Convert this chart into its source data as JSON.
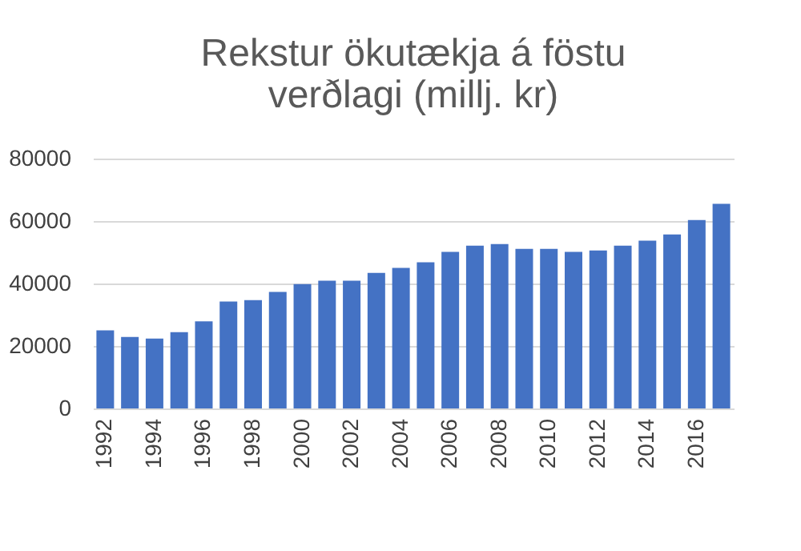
{
  "chart_data": {
    "type": "bar",
    "title": [
      "Rekstur ökutækja á föstu",
      "verðlagi (millj. kr)"
    ],
    "categories": [
      "1992",
      null,
      "1994",
      null,
      "1996",
      null,
      "1998",
      null,
      "2000",
      null,
      "2002",
      null,
      "2004",
      null,
      "2006",
      null,
      "2008",
      null,
      "2010",
      null,
      "2012",
      null,
      "2014",
      null,
      "2016",
      null
    ],
    "values": [
      25000,
      22900,
      22400,
      24400,
      27900,
      34200,
      34700,
      37300,
      39800,
      40900,
      40900,
      43400,
      45000,
      46800,
      50100,
      52100,
      52600,
      51100,
      51100,
      50100,
      50600,
      52100,
      53700,
      55700,
      60300,
      65500
    ],
    "color": "#4472c4",
    "ylim": [
      0,
      80000
    ],
    "yticks": [
      0,
      20000,
      40000,
      60000,
      80000
    ],
    "grid": "y"
  }
}
